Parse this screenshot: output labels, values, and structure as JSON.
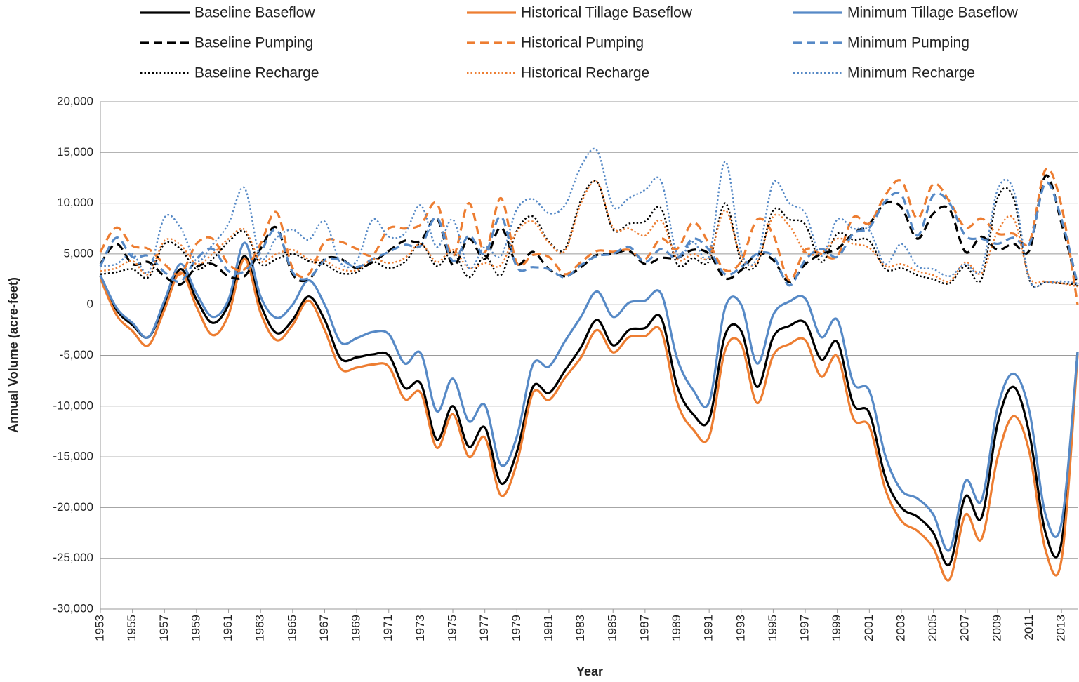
{
  "chart_data": {
    "type": "line",
    "x_label": "Year",
    "y_label": "Annual Volume (acre-feet)",
    "x": [
      1953,
      1954,
      1955,
      1956,
      1957,
      1958,
      1959,
      1960,
      1961,
      1962,
      1963,
      1964,
      1965,
      1966,
      1967,
      1968,
      1969,
      1970,
      1971,
      1972,
      1973,
      1974,
      1975,
      1976,
      1977,
      1978,
      1979,
      1980,
      1981,
      1982,
      1983,
      1984,
      1985,
      1986,
      1987,
      1988,
      1989,
      1990,
      1991,
      1992,
      1993,
      1994,
      1995,
      1996,
      1997,
      1998,
      1999,
      2000,
      2001,
      2002,
      2003,
      2004,
      2005,
      2006,
      2007,
      2008,
      2009,
      2010,
      2011,
      2012,
      2013,
      2014
    ],
    "xlim": [
      1953,
      2014
    ],
    "xticks": [
      1953,
      1955,
      1957,
      1959,
      1961,
      1963,
      1965,
      1967,
      1969,
      1971,
      1973,
      1975,
      1977,
      1979,
      1981,
      1983,
      1985,
      1987,
      1989,
      1991,
      1993,
      1995,
      1997,
      1999,
      2001,
      2003,
      2005,
      2007,
      2009,
      2011,
      2013
    ],
    "ylim": [
      -30000,
      20000
    ],
    "yticks": [
      {
        "value": -30000,
        "label": "-30,000"
      },
      {
        "value": -25000,
        "label": "-25,000"
      },
      {
        "value": -20000,
        "label": "-20,000"
      },
      {
        "value": -15000,
        "label": "-15,000"
      },
      {
        "value": -10000,
        "label": "-10,000"
      },
      {
        "value": -5000,
        "label": "-5,000"
      },
      0,
      {
        "value": 5000,
        "label": "5,000"
      },
      {
        "value": 10000,
        "label": "10,000"
      },
      {
        "value": 15000,
        "label": "15,000"
      },
      {
        "value": 20000,
        "label": "20,000"
      }
    ],
    "grid": true,
    "legend": "top",
    "smooth": true,
    "series": [
      {
        "name": "Baseline Baseflow",
        "color": "#000000",
        "line_style": "solid",
        "values": [
          2800,
          -500,
          -2000,
          -3200,
          0,
          3500,
          500,
          -1800,
          0,
          4800,
          0,
          -2800,
          -1500,
          800,
          -1500,
          -5300,
          -5200,
          -4900,
          -5000,
          -8200,
          -7800,
          -13300,
          -10000,
          -14000,
          -12100,
          -17600,
          -14500,
          -8100,
          -8700,
          -6500,
          -4200,
          -1500,
          -4000,
          -2500,
          -2300,
          -1300,
          -8000,
          -10800,
          -11300,
          -3000,
          -2600,
          -8100,
          -3200,
          -2100,
          -1800,
          -5400,
          -3700,
          -9800,
          -10700,
          -17000,
          -20000,
          -20900,
          -22500,
          -25600,
          -18900,
          -21000,
          -11800,
          -8100,
          -12800,
          -22500,
          -23400,
          -4700
        ]
      },
      {
        "name": "Historical Tillage Baseflow",
        "color": "#ED7D31",
        "line_style": "solid",
        "values": [
          2600,
          -1000,
          -2600,
          -4000,
          -500,
          3200,
          -200,
          -3000,
          -1000,
          4500,
          -800,
          -3500,
          -2000,
          400,
          -2500,
          -6300,
          -6200,
          -5900,
          -6100,
          -9300,
          -8700,
          -14100,
          -10800,
          -15000,
          -13100,
          -18800,
          -15600,
          -8700,
          -9400,
          -7200,
          -5200,
          -2500,
          -4700,
          -3200,
          -3100,
          -2600,
          -9600,
          -12300,
          -13000,
          -4500,
          -3900,
          -9700,
          -5000,
          -3900,
          -3500,
          -7100,
          -5100,
          -11200,
          -12000,
          -18200,
          -21300,
          -22300,
          -24000,
          -27100,
          -20700,
          -23100,
          -15100,
          -11000,
          -14600,
          -24200,
          -25100,
          -5000
        ]
      },
      {
        "name": "Minimum Tillage Baseflow",
        "color": "#5689C6",
        "line_style": "solid",
        "values": [
          2900,
          -300,
          -1800,
          -3200,
          400,
          4000,
          1100,
          -1200,
          500,
          6100,
          800,
          -1300,
          0,
          2400,
          0,
          -3700,
          -3300,
          -2700,
          -2900,
          -5800,
          -4800,
          -10500,
          -7300,
          -11500,
          -9900,
          -15800,
          -13000,
          -5900,
          -6100,
          -3600,
          -1200,
          1300,
          -1200,
          200,
          400,
          1100,
          -5300,
          -8400,
          -9600,
          -300,
          0,
          -5800,
          -1000,
          300,
          600,
          -3200,
          -1500,
          -7700,
          -8500,
          -14900,
          -18300,
          -19100,
          -20700,
          -24200,
          -17400,
          -19300,
          -10200,
          -6800,
          -10600,
          -20700,
          -21500,
          -4700
        ]
      },
      {
        "name": "Baseline Pumping",
        "color": "#000000",
        "line_style": "dashed",
        "values": [
          4000,
          6000,
          4000,
          4200,
          2800,
          2000,
          3700,
          4000,
          2800,
          2800,
          5500,
          7600,
          3000,
          2500,
          4500,
          4500,
          3600,
          4200,
          5300,
          6300,
          6300,
          8500,
          3900,
          6500,
          4500,
          7600,
          4000,
          5200,
          3500,
          2800,
          3700,
          4900,
          5000,
          5300,
          4000,
          4600,
          4600,
          5400,
          5000,
          2600,
          3400,
          5000,
          4400,
          2200,
          4000,
          5000,
          5500,
          7000,
          8000,
          10000,
          9600,
          6500,
          9000,
          9400,
          5200,
          6700,
          5400,
          6000,
          5400,
          12700,
          8000,
          1800
        ]
      },
      {
        "name": "Historical Pumping",
        "color": "#ED7D31",
        "line_style": "dashed",
        "values": [
          5200,
          7600,
          5800,
          5500,
          4000,
          3000,
          6000,
          6500,
          4000,
          3500,
          6000,
          9100,
          3600,
          3000,
          6200,
          6200,
          5500,
          4900,
          7500,
          7500,
          7900,
          10000,
          4800,
          10000,
          5200,
          10500,
          4100,
          4900,
          4700,
          3000,
          4200,
          5300,
          5200,
          5400,
          4500,
          6500,
          5500,
          8100,
          6000,
          3400,
          4300,
          8400,
          6900,
          2400,
          5400,
          5000,
          4800,
          8600,
          8000,
          10800,
          12200,
          8500,
          11900,
          10200,
          7600,
          8500,
          7000,
          7000,
          6200,
          13300,
          9700,
          0
        ]
      },
      {
        "name": "Minimum Pumping",
        "color": "#5689C6",
        "line_style": "dashed",
        "values": [
          3800,
          6600,
          4700,
          4800,
          3200,
          2300,
          4500,
          5500,
          3300,
          3300,
          5200,
          7400,
          3200,
          2600,
          4400,
          4400,
          3700,
          4500,
          5200,
          5900,
          5800,
          8600,
          4300,
          6800,
          5000,
          8700,
          3700,
          3700,
          3500,
          2700,
          3900,
          4800,
          5000,
          5700,
          4200,
          5500,
          4600,
          6500,
          5400,
          3000,
          3700,
          5000,
          4800,
          1900,
          4400,
          5500,
          4700,
          7000,
          7600,
          10200,
          10800,
          6800,
          10800,
          10000,
          6800,
          6500,
          6000,
          6600,
          6000,
          12000,
          8400,
          2000
        ]
      },
      {
        "name": "Baseline Recharge",
        "color": "#000000",
        "line_style": "dotted",
        "values": [
          3000,
          3200,
          3500,
          2700,
          6000,
          5500,
          3500,
          4500,
          6200,
          7200,
          4000,
          4500,
          5000,
          4300,
          4000,
          3100,
          3200,
          4200,
          3600,
          4200,
          6000,
          3800,
          5200,
          2700,
          4800,
          2900,
          7300,
          8700,
          6200,
          5500,
          10300,
          12100,
          7400,
          8000,
          8200,
          9500,
          4000,
          4600,
          4300,
          10000,
          4300,
          4000,
          9300,
          8400,
          7900,
          4200,
          7000,
          6400,
          6300,
          3500,
          3600,
          2900,
          2500,
          2100,
          3800,
          2500,
          10500,
          10500,
          2400,
          2200,
          2100,
          2000
        ]
      },
      {
        "name": "Historical Recharge",
        "color": "#ED7D31",
        "line_style": "dotted",
        "values": [
          3300,
          3600,
          4300,
          3000,
          6300,
          5900,
          4000,
          5000,
          6500,
          7400,
          4300,
          5000,
          5400,
          4500,
          4300,
          3500,
          3400,
          4500,
          4100,
          4600,
          6000,
          4200,
          5400,
          3600,
          4100,
          3900,
          7200,
          8200,
          6100,
          5300,
          10000,
          12100,
          7600,
          7500,
          6800,
          8300,
          4500,
          5000,
          4700,
          9300,
          4700,
          4200,
          8700,
          7800,
          5200,
          5100,
          6500,
          6000,
          5600,
          3800,
          4000,
          3300,
          2900,
          2300,
          4200,
          3100,
          7200,
          8500,
          2700,
          2300,
          2100,
          1800
        ]
      },
      {
        "name": "Minimum Recharge",
        "color": "#5689C6",
        "line_style": "dotted",
        "values": [
          3800,
          4000,
          5000,
          3200,
          8600,
          7600,
          4300,
          5900,
          8000,
          11500,
          4600,
          6600,
          7400,
          6400,
          8200,
          4100,
          4300,
          8400,
          6700,
          7000,
          9800,
          5700,
          8400,
          3600,
          5700,
          4800,
          9400,
          10400,
          9000,
          9800,
          13600,
          15200,
          9700,
          10500,
          11300,
          12200,
          5000,
          6200,
          4800,
          14100,
          5200,
          4600,
          12000,
          10000,
          9000,
          4800,
          8400,
          7500,
          7300,
          4000,
          6000,
          3800,
          3500,
          2800,
          4000,
          3500,
          11300,
          11300,
          2500,
          2200,
          2300,
          2100
        ]
      }
    ]
  }
}
